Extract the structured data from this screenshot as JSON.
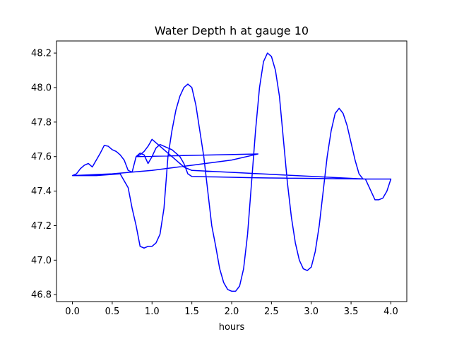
{
  "chart_data": {
    "type": "line",
    "title": "Water Depth h at gauge 10",
    "xlabel": "hours",
    "ylabel": "",
    "xlim": [
      -0.2,
      4.2
    ],
    "ylim": [
      46.76,
      48.27
    ],
    "x_ticks": [
      0.0,
      0.5,
      1.0,
      1.5,
      2.0,
      2.5,
      3.0,
      3.5,
      4.0
    ],
    "x_tick_labels": [
      "0.0",
      "0.5",
      "1.0",
      "1.5",
      "2.0",
      "2.5",
      "3.0",
      "3.5",
      "4.0"
    ],
    "y_ticks": [
      46.8,
      47.0,
      47.2,
      47.4,
      47.6,
      47.8,
      48.0,
      48.2
    ],
    "y_tick_labels": [
      "46.8",
      "47.0",
      "47.2",
      "47.4",
      "47.6",
      "47.8",
      "48.0",
      "48.2"
    ],
    "grid": false,
    "legend": "none",
    "series": [
      {
        "color": "#0000ff",
        "x": [
          0.0,
          0.05,
          0.1,
          0.15,
          0.2,
          0.25,
          0.3,
          0.35,
          0.4,
          0.45,
          0.5,
          0.55,
          0.6,
          0.65,
          0.7,
          0.75,
          0.8,
          0.85,
          0.9,
          0.95,
          1.0,
          1.05,
          1.1,
          1.15,
          1.2,
          1.25,
          1.3,
          1.35,
          1.4,
          1.45,
          1.5,
          1.6,
          1.7,
          1.8,
          1.9,
          2.0,
          2.1,
          2.2,
          2.33,
          2.5,
          2.7,
          2.9,
          3.1,
          3.3,
          3.5,
          3.68,
          3.75,
          3.8,
          3.85,
          3.9,
          3.95,
          4.0,
          3.68,
          1.5,
          1.4,
          1.35,
          1.3,
          1.25,
          1.2,
          1.15,
          1.1,
          1.05,
          1.0,
          0.95,
          0.9,
          0.85,
          0.8,
          2.33,
          2.0,
          1.5,
          1.0,
          0.5,
          0.0,
          0.3,
          0.6,
          0.7,
          0.75,
          0.8,
          0.85,
          0.9,
          0.95,
          1.0,
          1.05,
          1.1,
          1.15,
          1.2,
          1.25,
          1.3,
          1.35,
          1.4,
          1.45,
          1.5,
          1.55,
          1.6,
          1.65,
          1.7,
          1.75,
          1.8,
          1.85,
          1.9,
          1.95,
          2.0,
          2.05,
          2.1,
          2.15,
          2.2,
          2.25,
          2.3,
          2.35,
          2.4,
          2.45,
          2.5,
          2.55,
          2.6,
          2.65,
          2.7,
          2.75,
          2.8,
          2.85,
          2.9,
          2.95,
          3.0,
          3.05,
          3.1,
          3.15,
          3.2,
          3.25,
          3.3,
          3.35,
          3.4,
          3.45,
          3.5,
          3.55,
          3.6,
          3.65,
          3.68
        ],
        "y": [
          47.49,
          47.5,
          47.53,
          47.55,
          47.56,
          47.54,
          47.58,
          47.62,
          47.665,
          47.66,
          47.64,
          47.63,
          47.61,
          47.58,
          47.52,
          47.51,
          47.6,
          47.62,
          47.61,
          47.56,
          47.6,
          47.65,
          47.67,
          47.66,
          47.65,
          47.64,
          47.62,
          47.6,
          47.56,
          47.5,
          47.485,
          47.484,
          47.483,
          47.482,
          47.481,
          47.48,
          47.479,
          47.478,
          47.477,
          47.476,
          47.475,
          47.474,
          47.473,
          47.472,
          47.471,
          47.47,
          47.4,
          47.35,
          47.35,
          47.36,
          47.4,
          47.47,
          47.47,
          47.52,
          47.54,
          47.56,
          47.58,
          47.6,
          47.62,
          47.64,
          47.66,
          47.68,
          47.7,
          47.66,
          47.63,
          47.61,
          47.6,
          47.615,
          47.58,
          47.55,
          47.52,
          47.5,
          47.49,
          47.49,
          47.5,
          47.42,
          47.3,
          47.2,
          47.08,
          47.07,
          47.08,
          47.08,
          47.1,
          47.15,
          47.3,
          47.6,
          47.75,
          47.87,
          47.95,
          48.0,
          48.02,
          48.0,
          47.9,
          47.75,
          47.6,
          47.4,
          47.2,
          47.08,
          46.95,
          46.87,
          46.83,
          46.82,
          46.82,
          46.85,
          46.95,
          47.15,
          47.45,
          47.75,
          48.0,
          48.15,
          48.2,
          48.18,
          48.1,
          47.95,
          47.7,
          47.45,
          47.25,
          47.1,
          47.0,
          46.95,
          46.94,
          46.96,
          47.05,
          47.2,
          47.4,
          47.6,
          47.75,
          47.85,
          47.88,
          47.85,
          47.78,
          47.68,
          47.58,
          47.5,
          47.47,
          47.47
        ]
      }
    ]
  }
}
